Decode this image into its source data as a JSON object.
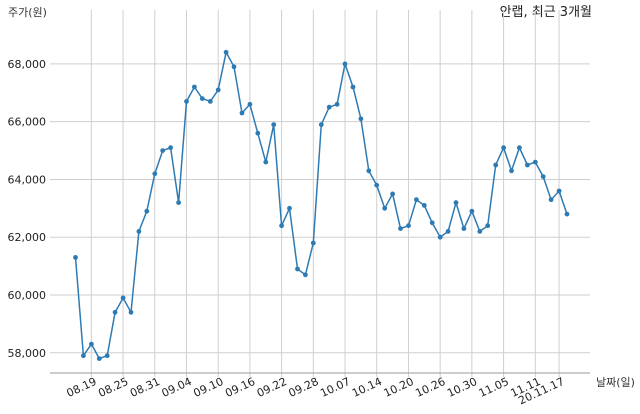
{
  "chart_data": {
    "type": "line",
    "title": "안랩, 최근 3개월",
    "ylabel": "주가(원)",
    "xlabel": "날짜(일)",
    "ylim": [
      57300,
      69000
    ],
    "grid": true,
    "yticks": [
      {
        "value": 58000,
        "label": "58,000"
      },
      {
        "value": 60000,
        "label": "60,000"
      },
      {
        "value": 62000,
        "label": "62,000"
      },
      {
        "value": 64000,
        "label": "64,000"
      },
      {
        "value": 66000,
        "label": "66,000"
      },
      {
        "value": 68000,
        "label": "68,000"
      }
    ],
    "xticks": [
      {
        "index": 2,
        "label": "08.19"
      },
      {
        "index": 6,
        "label": "08.25"
      },
      {
        "index": 10,
        "label": "08.31"
      },
      {
        "index": 14,
        "label": "09.04"
      },
      {
        "index": 18,
        "label": "09.10"
      },
      {
        "index": 22,
        "label": "09.16"
      },
      {
        "index": 26,
        "label": "09.22"
      },
      {
        "index": 30,
        "label": "09.28"
      },
      {
        "index": 34,
        "label": "10.07"
      },
      {
        "index": 38,
        "label": "10.14"
      },
      {
        "index": 42,
        "label": "10.20"
      },
      {
        "index": 46,
        "label": "10.26"
      },
      {
        "index": 50,
        "label": "10.30"
      },
      {
        "index": 54,
        "label": "11.05"
      },
      {
        "index": 58,
        "label": "11.11"
      },
      {
        "index": 61,
        "label": "20.11.17"
      }
    ],
    "series": [
      {
        "color": "#2e7bb4",
        "values": [
          61300,
          57900,
          58300,
          57800,
          57900,
          59400,
          59900,
          59400,
          62200,
          62900,
          64200,
          65000,
          65100,
          63200,
          66700,
          67200,
          66800,
          66700,
          67100,
          68400,
          67900,
          66300,
          66600,
          65600,
          64600,
          65900,
          62400,
          63000,
          60900,
          60700,
          61800,
          65900,
          66500,
          66600,
          68000,
          67200,
          66100,
          64300,
          63800,
          63000,
          63500,
          62300,
          62400,
          63300,
          63100,
          62500,
          62000,
          62200,
          63200,
          62300,
          62900,
          62200,
          62400,
          64500,
          65100,
          64300,
          65100,
          64500,
          64600,
          64100,
          63300,
          63600,
          62800
        ]
      }
    ]
  }
}
